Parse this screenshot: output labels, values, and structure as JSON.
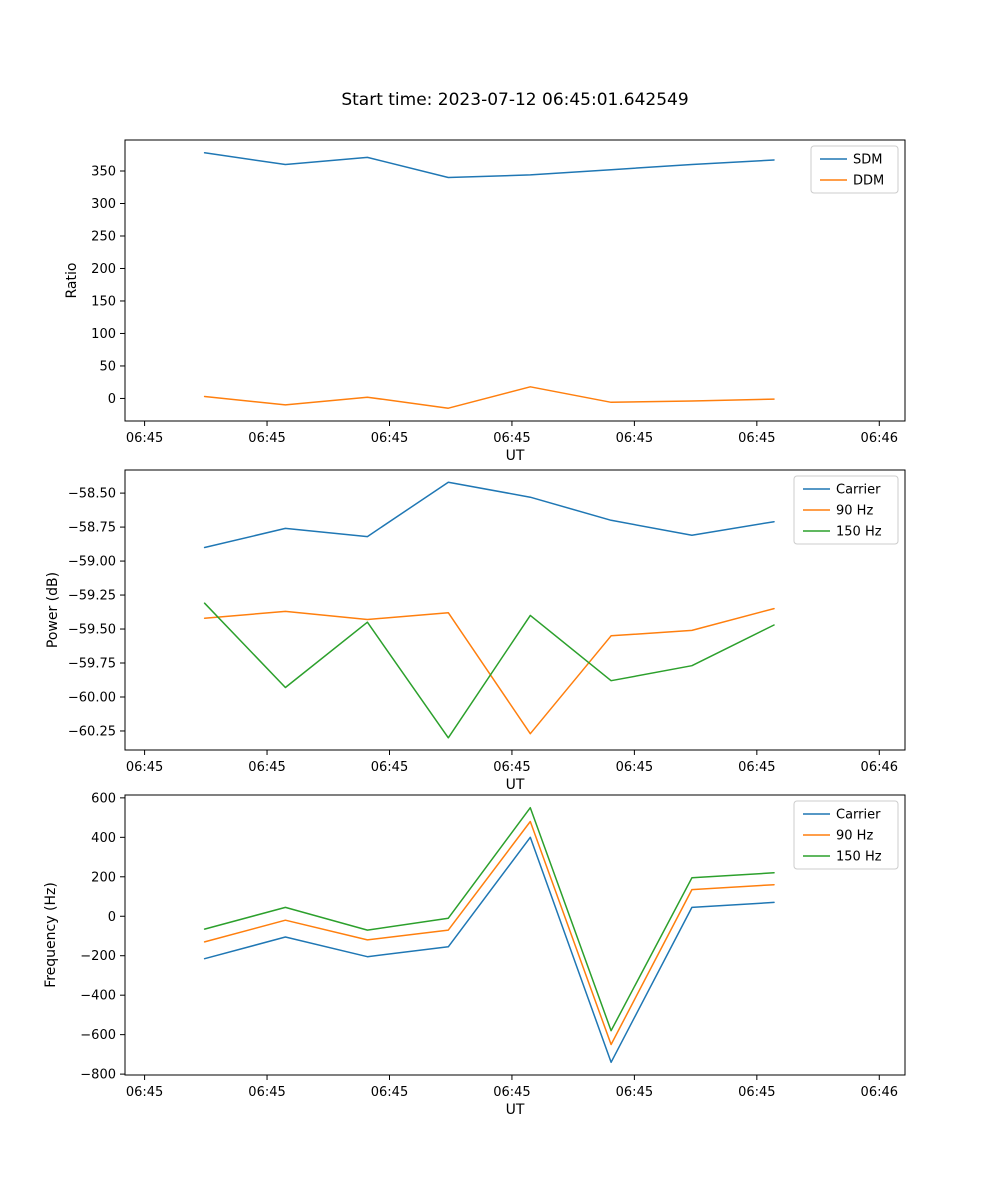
{
  "title": "Start time: 2023-07-12 06:45:01.642549",
  "chart_data": [
    {
      "name": "ratio",
      "type": "line",
      "title": "Start time: 2023-07-12 06:45:01.642549",
      "xlabel": "UT",
      "ylabel": "Ratio",
      "xlim": [
        -1.6,
        62.1
      ],
      "ylim": [
        -34.7,
        397.7
      ],
      "xticks": [
        0,
        10,
        20,
        30,
        40,
        50,
        60
      ],
      "xtick_labels": [
        "06:45",
        "06:45",
        "06:45",
        "06:45",
        "06:45",
        "06:45",
        "06:46"
      ],
      "yticks": [
        0,
        50,
        100,
        150,
        200,
        250,
        300,
        350
      ],
      "ytick_labels": [
        "0",
        "50",
        "100",
        "150",
        "200",
        "250",
        "300",
        "350"
      ],
      "x": [
        4.9,
        11.5,
        18.2,
        24.8,
        31.5,
        38.1,
        44.7,
        51.4
      ],
      "series": [
        {
          "name": "SDM",
          "color": "#1f77b4",
          "values": [
            378,
            360,
            371,
            340,
            344,
            352,
            360,
            367
          ]
        },
        {
          "name": "DDM",
          "color": "#ff7f0e",
          "values": [
            3,
            -10,
            2,
            -15,
            18,
            -6,
            -4,
            -1
          ]
        }
      ],
      "legend_position": "upper right",
      "grid": false
    },
    {
      "name": "power",
      "type": "line",
      "xlabel": "UT",
      "ylabel": "Power (dB)",
      "xlim": [
        -1.6,
        62.1
      ],
      "ylim": [
        -60.39,
        -58.33
      ],
      "xticks": [
        0,
        10,
        20,
        30,
        40,
        50,
        60
      ],
      "xtick_labels": [
        "06:45",
        "06:45",
        "06:45",
        "06:45",
        "06:45",
        "06:45",
        "06:46"
      ],
      "yticks": [
        -60.25,
        -60.0,
        -59.75,
        -59.5,
        -59.25,
        -59.0,
        -58.75,
        -58.5
      ],
      "ytick_labels": [
        "−60.25",
        "−60.00",
        "−59.75",
        "−59.50",
        "−59.25",
        "−59.00",
        "−58.75",
        "−58.50"
      ],
      "x": [
        4.9,
        11.5,
        18.2,
        24.8,
        31.5,
        38.1,
        44.7,
        51.4
      ],
      "series": [
        {
          "name": "Carrier",
          "color": "#1f77b4",
          "values": [
            -58.9,
            -58.76,
            -58.82,
            -58.42,
            -58.53,
            -58.7,
            -58.81,
            -58.71
          ]
        },
        {
          "name": "90 Hz",
          "color": "#ff7f0e",
          "values": [
            -59.42,
            -59.37,
            -59.43,
            -59.38,
            -60.27,
            -59.55,
            -59.51,
            -59.35
          ]
        },
        {
          "name": "150 Hz",
          "color": "#2ca02c",
          "values": [
            -59.31,
            -59.93,
            -59.45,
            -60.3,
            -59.4,
            -59.88,
            -59.77,
            -59.47
          ]
        }
      ],
      "legend_position": "upper right",
      "grid": false
    },
    {
      "name": "frequency",
      "type": "line",
      "xlabel": "UT",
      "ylabel": "Frequency (Hz)",
      "xlim": [
        -1.6,
        62.1
      ],
      "ylim": [
        -804.5,
        614.5
      ],
      "xticks": [
        0,
        10,
        20,
        30,
        40,
        50,
        60
      ],
      "xtick_labels": [
        "06:45",
        "06:45",
        "06:45",
        "06:45",
        "06:45",
        "06:45",
        "06:46"
      ],
      "yticks": [
        -800,
        -600,
        -400,
        -200,
        0,
        200,
        400,
        600
      ],
      "ytick_labels": [
        "−800",
        "−600",
        "−400",
        "−200",
        "0",
        "200",
        "400",
        "600"
      ],
      "x": [
        4.9,
        11.5,
        18.2,
        24.8,
        31.5,
        38.1,
        44.7,
        51.4
      ],
      "series": [
        {
          "name": "Carrier",
          "color": "#1f77b4",
          "values": [
            -215,
            -105,
            -205,
            -155,
            400,
            -740,
            45,
            70
          ]
        },
        {
          "name": "90 Hz",
          "color": "#ff7f0e",
          "values": [
            -130,
            -20,
            -120,
            -70,
            480,
            -650,
            135,
            160
          ]
        },
        {
          "name": "150 Hz",
          "color": "#2ca02c",
          "values": [
            -65,
            45,
            -70,
            -10,
            550,
            -580,
            195,
            220
          ]
        }
      ],
      "legend_position": "upper right",
      "grid": false
    }
  ]
}
